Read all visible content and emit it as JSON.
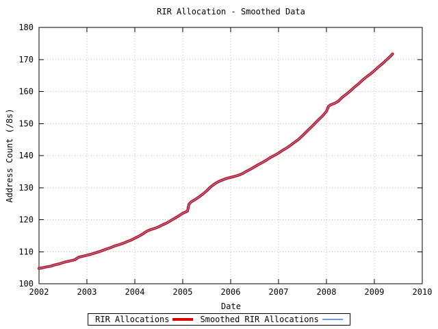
{
  "chart_data": {
    "type": "line",
    "title": "RIR Allocation - Smoothed Data",
    "xlabel": "Date",
    "ylabel": "Address Count (/8s)",
    "xlim": [
      2002,
      2010
    ],
    "ylim": [
      100,
      180
    ],
    "xticks": [
      2002,
      2003,
      2004,
      2005,
      2006,
      2007,
      2008,
      2009,
      2010
    ],
    "yticks": [
      100,
      110,
      120,
      130,
      140,
      150,
      160,
      170,
      180
    ],
    "grid": true,
    "grid_style": "dotted",
    "legend_position": "bottom-center-outside",
    "x": [
      2002.0,
      2002.08,
      2002.17,
      2002.25,
      2002.33,
      2002.42,
      2002.5,
      2002.58,
      2002.67,
      2002.75,
      2002.8,
      2002.83,
      2002.92,
      2003.0,
      2003.08,
      2003.17,
      2003.25,
      2003.33,
      2003.42,
      2003.5,
      2003.58,
      2003.67,
      2003.75,
      2003.83,
      2003.92,
      2004.0,
      2004.08,
      2004.17,
      2004.25,
      2004.33,
      2004.42,
      2004.5,
      2004.58,
      2004.67,
      2004.75,
      2004.83,
      2004.92,
      2005.0,
      2005.06,
      2005.1,
      2005.13,
      2005.17,
      2005.25,
      2005.33,
      2005.42,
      2005.5,
      2005.58,
      2005.67,
      2005.75,
      2005.83,
      2005.92,
      2006.0,
      2006.08,
      2006.17,
      2006.25,
      2006.33,
      2006.42,
      2006.5,
      2006.58,
      2006.67,
      2006.75,
      2006.83,
      2006.92,
      2007.0,
      2007.08,
      2007.17,
      2007.25,
      2007.33,
      2007.42,
      2007.5,
      2007.58,
      2007.67,
      2007.75,
      2007.83,
      2007.92,
      2008.0,
      2008.04,
      2008.08,
      2008.17,
      2008.25,
      2008.33,
      2008.42,
      2008.5,
      2008.58,
      2008.67,
      2008.75,
      2008.83,
      2008.92,
      2009.0,
      2009.08,
      2009.17,
      2009.25,
      2009.33,
      2009.38
    ],
    "series": [
      {
        "name": "RIR Allocations",
        "color": "#dd0000",
        "width": 4,
        "values": [
          104.8,
          105.0,
          105.3,
          105.5,
          105.9,
          106.2,
          106.6,
          106.9,
          107.2,
          107.5,
          108.0,
          108.3,
          108.6,
          108.9,
          109.2,
          109.6,
          110.0,
          110.4,
          110.9,
          111.3,
          111.8,
          112.2,
          112.6,
          113.1,
          113.6,
          114.2,
          114.8,
          115.6,
          116.4,
          116.9,
          117.3,
          117.8,
          118.4,
          119.0,
          119.7,
          120.4,
          121.2,
          122.0,
          122.4,
          122.7,
          124.8,
          125.5,
          126.2,
          127.0,
          128.0,
          129.0,
          130.2,
          131.2,
          131.9,
          132.4,
          132.9,
          133.2,
          133.5,
          133.9,
          134.4,
          135.1,
          135.8,
          136.5,
          137.2,
          137.9,
          138.6,
          139.4,
          140.1,
          140.8,
          141.6,
          142.4,
          143.2,
          144.1,
          145.1,
          146.2,
          147.4,
          148.7,
          149.9,
          151.1,
          152.4,
          153.8,
          155.3,
          155.8,
          156.3,
          157.0,
          158.2,
          159.2,
          160.2,
          161.3,
          162.4,
          163.5,
          164.5,
          165.5,
          166.5,
          167.6,
          168.7,
          169.8,
          170.9,
          171.7
        ]
      },
      {
        "name": "Smoothed RIR Allocations",
        "color": "#6699ee",
        "width": 1.2,
        "values": [
          104.8,
          105.0,
          105.3,
          105.5,
          105.9,
          106.2,
          106.6,
          106.9,
          107.2,
          107.5,
          108.0,
          108.3,
          108.6,
          108.9,
          109.2,
          109.6,
          110.0,
          110.4,
          110.9,
          111.3,
          111.8,
          112.2,
          112.6,
          113.1,
          113.6,
          114.2,
          114.8,
          115.6,
          116.4,
          116.9,
          117.3,
          117.8,
          118.4,
          119.0,
          119.7,
          120.4,
          121.2,
          122.0,
          122.4,
          122.7,
          124.8,
          125.5,
          126.2,
          127.0,
          128.0,
          129.0,
          130.2,
          131.2,
          131.9,
          132.4,
          132.9,
          133.2,
          133.5,
          133.9,
          134.4,
          135.1,
          135.8,
          136.5,
          137.2,
          137.9,
          138.6,
          139.4,
          140.1,
          140.8,
          141.6,
          142.4,
          143.2,
          144.1,
          145.1,
          146.2,
          147.4,
          148.7,
          149.9,
          151.1,
          152.4,
          153.8,
          155.3,
          155.8,
          156.3,
          157.0,
          158.2,
          159.2,
          160.2,
          161.3,
          162.4,
          163.5,
          164.5,
          165.5,
          166.5,
          167.6,
          168.7,
          169.8,
          170.9,
          171.7
        ]
      }
    ],
    "colors": {
      "grid": "#bbbbbb",
      "border": "#000000",
      "background": "#ffffff"
    }
  }
}
